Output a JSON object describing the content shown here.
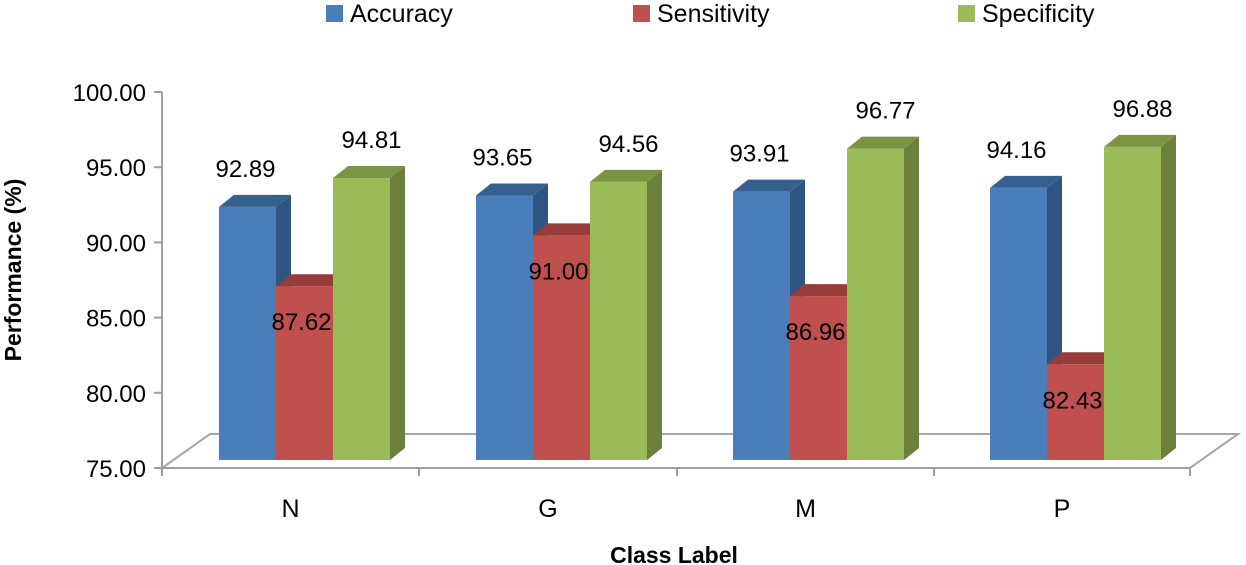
{
  "chart_data": {
    "type": "bar",
    "title": "",
    "xlabel": "Class Label",
    "ylabel": "Performance (%)",
    "ylim": [
      75,
      100
    ],
    "yticks": [
      "75.00",
      "80.00",
      "85.00",
      "90.00",
      "95.00",
      "100.00"
    ],
    "categories": [
      "N",
      "G",
      "M",
      "P"
    ],
    "series": [
      {
        "name": "Accuracy",
        "values": [
          92.89,
          93.65,
          93.91,
          94.16
        ],
        "labels": [
          "92.89",
          "93.65",
          "93.91",
          "94.16"
        ],
        "color": "#4a7ebb",
        "side_color": "#2f5682",
        "top_color": "#35608f"
      },
      {
        "name": "Sensitivity",
        "values": [
          87.62,
          91.0,
          86.96,
          82.43
        ],
        "labels": [
          "87.62",
          "91.00",
          "86.96",
          "82.43"
        ],
        "color": "#c0504d",
        "side_color": "#8a3836",
        "top_color": "#963c3a"
      },
      {
        "name": "Specificity",
        "values": [
          94.81,
          94.56,
          96.77,
          96.88
        ],
        "labels": [
          "94.81",
          "94.56",
          "96.77",
          "96.88"
        ],
        "color": "#9bbb59",
        "side_color": "#6a803b",
        "top_color": "#7a9444"
      }
    ],
    "legend_position": "top",
    "grid": false,
    "style": "3d-clustered-column"
  }
}
